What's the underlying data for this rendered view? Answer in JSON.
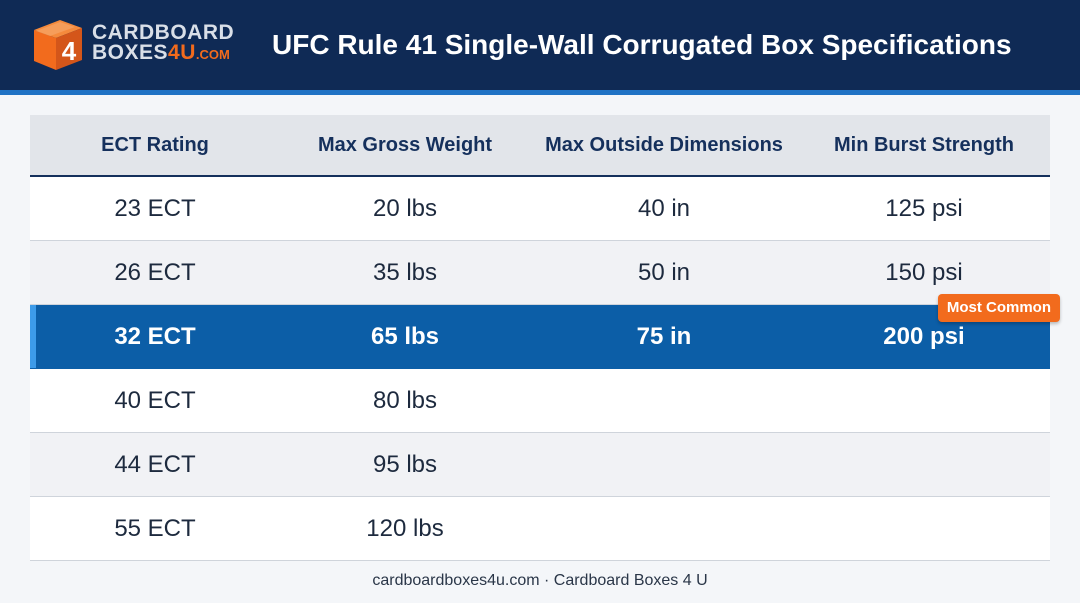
{
  "brand": {
    "logo_line1": "CARDBOARD",
    "logo_line2_word": "BOXES",
    "logo_line2_num": "4U",
    "logo_line2_suffix": ".COM",
    "box_digit": "4",
    "orange": "#f26b1d",
    "navy": "#0f2a55",
    "accent_blue": "#0c5ea7"
  },
  "title": "UFC Rule 41 Single-Wall Corrugated Box Specifications",
  "table": {
    "headers": [
      "ECT Rating",
      "Max Gross Weight",
      "Max Outside Dimensions",
      "Min Burst Strength"
    ],
    "rows": [
      {
        "ect": "23 ECT",
        "weight": "20 lbs",
        "dims": "40 in",
        "burst": "125 psi",
        "badge": ""
      },
      {
        "ect": "26 ECT",
        "weight": "35 lbs",
        "dims": "50 in",
        "burst": "150 psi",
        "badge": ""
      },
      {
        "ect": "32 ECT",
        "weight": "65 lbs",
        "dims": "75 in",
        "burst": "200 psi",
        "badge": "Most Common"
      },
      {
        "ect": "40 ECT",
        "weight": "80 lbs",
        "dims": "",
        "burst": "",
        "badge": ""
      },
      {
        "ect": "44 ECT",
        "weight": "95 lbs",
        "dims": "",
        "burst": "",
        "badge": ""
      },
      {
        "ect": "55 ECT",
        "weight": "120 lbs",
        "dims": "",
        "burst": "",
        "badge": ""
      }
    ]
  },
  "footer": "cardboardboxes4u.com · Cardboard Boxes 4 U"
}
